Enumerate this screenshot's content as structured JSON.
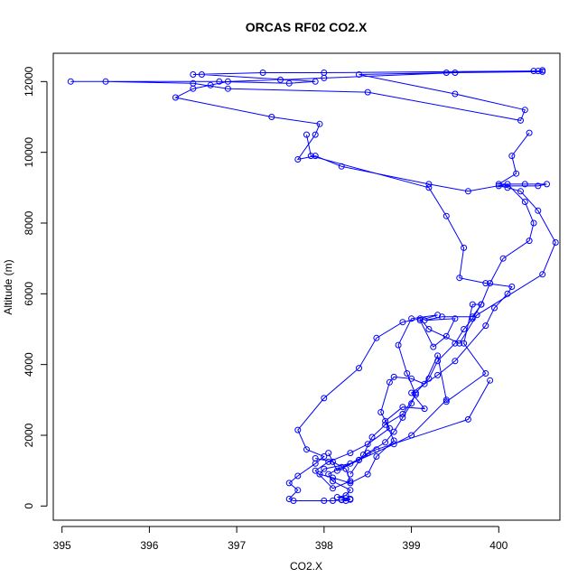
{
  "chart_data": {
    "type": "line",
    "title": "ORCAS RF02 CO2.X",
    "xlabel": "CO2.X",
    "ylabel": "Altitude (m)",
    "xlim": [
      394.9,
      400.7
    ],
    "ylim": [
      -400,
      12800
    ],
    "x_ticks": [
      395,
      396,
      397,
      398,
      399,
      400
    ],
    "y_ticks": [
      0,
      2000,
      4000,
      6000,
      8000,
      10000,
      12000
    ],
    "colors": {
      "series": "#0000ff"
    },
    "series": [
      {
        "points": [
          [
            398.25,
            150
          ],
          [
            398.2,
            180
          ],
          [
            398.3,
            200
          ],
          [
            398.15,
            250
          ],
          [
            398.25,
            300
          ],
          [
            398.3,
            450
          ],
          [
            398.1,
            700
          ],
          [
            398.05,
            900
          ],
          [
            398.2,
            1100
          ],
          [
            398.4,
            1300
          ],
          [
            398.5,
            1500
          ],
          [
            398.7,
            1800
          ],
          [
            398.8,
            2100
          ],
          [
            398.9,
            2500
          ],
          [
            399.0,
            2900
          ],
          [
            399.05,
            3200
          ],
          [
            399.2,
            3600
          ],
          [
            399.3,
            4100
          ],
          [
            399.5,
            4600
          ],
          [
            399.6,
            5000
          ],
          [
            399.7,
            5300
          ],
          [
            399.8,
            5700
          ],
          [
            399.9,
            6300
          ],
          [
            400.05,
            7000
          ],
          [
            400.35,
            7500
          ],
          [
            400.4,
            8000
          ],
          [
            400.3,
            8600
          ],
          [
            400.1,
            9100
          ],
          [
            399.65,
            8900
          ],
          [
            399.2,
            9100
          ],
          [
            398.2,
            9600
          ],
          [
            397.9,
            9900
          ],
          [
            397.7,
            9800
          ],
          [
            397.9,
            10500
          ],
          [
            397.95,
            10800
          ],
          [
            397.4,
            11000
          ],
          [
            396.3,
            11550
          ],
          [
            396.5,
            11800
          ],
          [
            396.7,
            11900
          ],
          [
            396.9,
            12000
          ],
          [
            397.5,
            12050
          ],
          [
            398.0,
            12100
          ],
          [
            399.5,
            12250
          ],
          [
            400.45,
            12300
          ],
          [
            400.5,
            12320
          ],
          [
            400.5,
            12280
          ],
          [
            399.4,
            12250
          ],
          [
            398.4,
            12200
          ],
          [
            399.5,
            11650
          ],
          [
            400.3,
            11200
          ],
          [
            400.25,
            10900
          ],
          [
            398.5,
            11700
          ],
          [
            396.9,
            11800
          ],
          [
            396.5,
            11950
          ],
          [
            395.5,
            12000
          ],
          [
            395.1,
            12000
          ],
          [
            396.8,
            12000
          ],
          [
            397.6,
            11950
          ],
          [
            397.9,
            12000
          ],
          [
            396.6,
            12200
          ],
          [
            396.5,
            12200
          ],
          [
            397.3,
            12250
          ],
          [
            398.0,
            12250
          ],
          [
            400.4,
            12300
          ]
        ]
      },
      {
        "points": [
          [
            400.35,
            10550
          ],
          [
            400.15,
            9900
          ],
          [
            400.2,
            9400
          ],
          [
            400.0,
            9100
          ],
          [
            400.3,
            9100
          ],
          [
            400.55,
            9100
          ],
          [
            400.45,
            9050
          ],
          [
            400.0,
            9050
          ],
          [
            400.1,
            9000
          ],
          [
            400.25,
            8900
          ],
          [
            400.45,
            8350
          ],
          [
            400.65,
            7450
          ],
          [
            400.5,
            6550
          ],
          [
            399.75,
            5400
          ],
          [
            399.55,
            4600
          ],
          [
            399.2,
            5000
          ],
          [
            399.1,
            5300
          ],
          [
            398.9,
            5200
          ],
          [
            398.6,
            4750
          ],
          [
            398.4,
            3900
          ],
          [
            398.0,
            3050
          ],
          [
            397.7,
            2150
          ],
          [
            397.8,
            1600
          ],
          [
            398.0,
            1400
          ],
          [
            397.9,
            1200
          ],
          [
            397.7,
            850
          ],
          [
            397.6,
            650
          ],
          [
            397.7,
            450
          ],
          [
            397.6,
            200
          ],
          [
            397.65,
            150
          ],
          [
            398.0,
            150
          ],
          [
            398.1,
            150
          ],
          [
            398.2,
            170
          ],
          [
            398.3,
            180
          ],
          [
            398.25,
            220
          ]
        ]
      },
      {
        "points": [
          [
            399.9,
            3550
          ],
          [
            399.65,
            2450
          ],
          [
            398.6,
            1600
          ],
          [
            398.3,
            1200
          ],
          [
            398.0,
            1050
          ],
          [
            397.95,
            900
          ],
          [
            398.1,
            800
          ],
          [
            398.3,
            650
          ],
          [
            398.5,
            900
          ],
          [
            398.6,
            1400
          ],
          [
            398.8,
            1850
          ],
          [
            398.7,
            2400
          ],
          [
            398.9,
            2800
          ],
          [
            399.15,
            2750
          ],
          [
            399.0,
            3200
          ],
          [
            399.3,
            3700
          ],
          [
            399.5,
            4100
          ],
          [
            399.85,
            5100
          ],
          [
            399.95,
            5600
          ],
          [
            400.1,
            6000
          ],
          [
            400.15,
            6200
          ],
          [
            399.85,
            6300
          ],
          [
            399.55,
            6450
          ],
          [
            399.6,
            7300
          ],
          [
            399.4,
            8200
          ],
          [
            399.2,
            9000
          ],
          [
            397.85,
            9900
          ],
          [
            397.8,
            10500
          ]
        ]
      },
      {
        "points": [
          [
            398.3,
            900
          ],
          [
            398.45,
            1450
          ],
          [
            398.55,
            1950
          ],
          [
            398.7,
            2300
          ],
          [
            398.9,
            2600
          ],
          [
            399.05,
            3150
          ],
          [
            398.95,
            3750
          ],
          [
            398.85,
            4550
          ],
          [
            399.0,
            5300
          ],
          [
            399.3,
            5400
          ],
          [
            399.1,
            5250
          ],
          [
            399.25,
            4500
          ],
          [
            399.4,
            4800
          ],
          [
            399.5,
            5300
          ],
          [
            399.15,
            5250
          ],
          [
            399.35,
            5350
          ],
          [
            399.7,
            5350
          ],
          [
            399.8,
            5700
          ],
          [
            399.7,
            5700
          ],
          [
            399.6,
            4600
          ],
          [
            399.85,
            3750
          ],
          [
            399.4,
            2950
          ]
        ]
      },
      {
        "points": [
          [
            397.9,
            1350
          ],
          [
            398.1,
            1250
          ],
          [
            398.25,
            1050
          ],
          [
            398.3,
            700
          ],
          [
            398.1,
            500
          ],
          [
            397.9,
            1000
          ],
          [
            398.05,
            1250
          ],
          [
            398.3,
            1500
          ],
          [
            398.5,
            1750
          ],
          [
            398.75,
            2200
          ],
          [
            398.65,
            2650
          ],
          [
            398.75,
            3500
          ],
          [
            398.8,
            3650
          ],
          [
            399.0,
            3600
          ],
          [
            399.15,
            3450
          ],
          [
            399.3,
            4250
          ],
          [
            399.4,
            3000
          ],
          [
            399.0,
            2000
          ],
          [
            398.8,
            1750
          ],
          [
            398.4,
            1300
          ],
          [
            398.15,
            1000
          ],
          [
            398.05,
            1500
          ]
        ]
      }
    ]
  }
}
